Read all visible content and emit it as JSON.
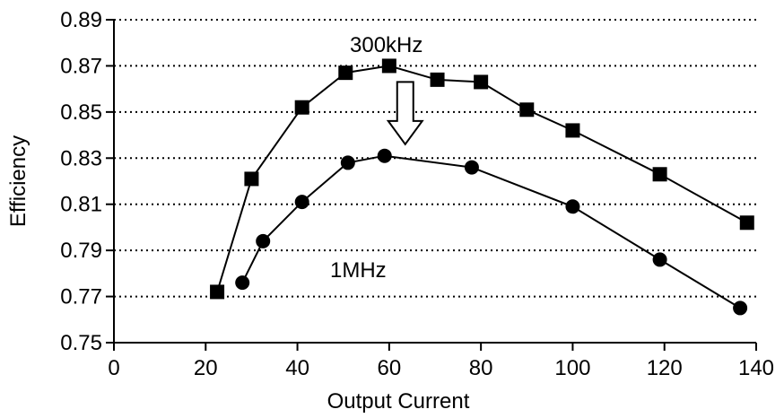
{
  "chart_data": {
    "type": "line",
    "xlabel": "Output Current",
    "ylabel": "Efficiency",
    "xlim": [
      0,
      140
    ],
    "ylim": [
      0.75,
      0.89
    ],
    "x_ticks": [
      0,
      20,
      40,
      60,
      80,
      100,
      120,
      140
    ],
    "y_ticks": [
      "0.75",
      "0.77",
      "0.79",
      "0.81",
      "0.83",
      "0.85",
      "0.87",
      "0.89"
    ],
    "grid": "horizontal dotted",
    "series": [
      {
        "name": "300kHz",
        "marker": "square",
        "color": "#000000",
        "x": [
          22.5,
          30,
          41,
          50.5,
          60,
          70.5,
          80,
          90,
          100,
          119,
          138
        ],
        "y": [
          0.772,
          0.821,
          0.852,
          0.867,
          0.87,
          0.864,
          0.863,
          0.851,
          0.842,
          0.823,
          0.802
        ]
      },
      {
        "name": "1MHz",
        "marker": "circle",
        "color": "#000000",
        "x": [
          28,
          32.5,
          41,
          51,
          59,
          78,
          100,
          119,
          136.5
        ],
        "y": [
          0.776,
          0.794,
          0.811,
          0.828,
          0.831,
          0.826,
          0.809,
          0.786,
          0.765
        ]
      }
    ],
    "annotation": {
      "type": "down-arrow",
      "x": 63.5,
      "y_top": 0.863,
      "y_bottom": 0.836
    }
  }
}
